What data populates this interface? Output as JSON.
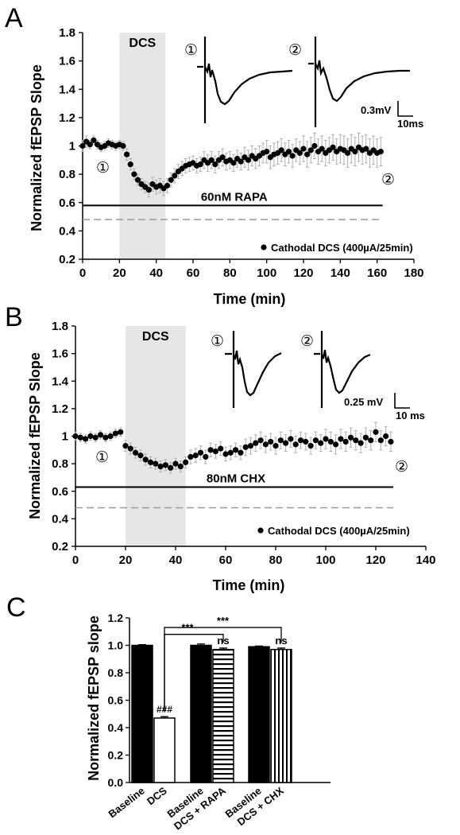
{
  "chart_data": [
    {
      "panel": "A",
      "type": "scatter",
      "ylabel": "Normalized fEPSP Slope",
      "xlabel": "Time (min)",
      "xlim": [
        0,
        180
      ],
      "ylim": [
        0.2,
        1.8
      ],
      "xticks": [
        "0",
        "20",
        "40",
        "60",
        "80",
        "100",
        "120",
        "140",
        "160",
        "180"
      ],
      "yticks": [
        "0.2",
        "0.4",
        "0.6",
        "0.8",
        "1",
        "1.2",
        "1.4",
        "1.6",
        "1.8"
      ],
      "shaded_label": "DCS",
      "shaded_range": [
        20,
        45
      ],
      "drug_line_label": "60nM RAPA",
      "drug_line_y": 0.58,
      "drug_line_range": [
        0,
        163
      ],
      "dashed_line_y": 0.48,
      "legend": "Cathodal DCS (400µA/25min)",
      "marker_1": "①",
      "marker_2": "②",
      "scale_bar_v": "0.3mV",
      "scale_bar_h": "10ms",
      "x": [
        0,
        2,
        4,
        6,
        8,
        10,
        12,
        14,
        16,
        18,
        20,
        22,
        24,
        26,
        28,
        30,
        32,
        34,
        36,
        38,
        40,
        42,
        44,
        46,
        48,
        50,
        52,
        54,
        56,
        58,
        60,
        62,
        64,
        66,
        68,
        70,
        72,
        74,
        76,
        78,
        80,
        82,
        84,
        86,
        88,
        90,
        92,
        94,
        96,
        98,
        100,
        102,
        104,
        106,
        108,
        110,
        112,
        114,
        116,
        118,
        120,
        122,
        124,
        126,
        128,
        130,
        132,
        134,
        136,
        138,
        140,
        142,
        144,
        146,
        148,
        150,
        152,
        154,
        156,
        158,
        160,
        162
      ],
      "y": [
        1.0,
        1.03,
        1.01,
        1.04,
        1.01,
        0.99,
        1.0,
        1.02,
        1.01,
        1.0,
        1.01,
        1.0,
        0.94,
        0.87,
        0.8,
        0.76,
        0.73,
        0.71,
        0.69,
        0.73,
        0.71,
        0.72,
        0.7,
        0.72,
        0.76,
        0.79,
        0.82,
        0.84,
        0.86,
        0.87,
        0.88,
        0.86,
        0.87,
        0.9,
        0.88,
        0.9,
        0.87,
        0.9,
        0.92,
        0.89,
        0.9,
        0.88,
        0.91,
        0.89,
        0.92,
        0.9,
        0.93,
        0.91,
        0.93,
        0.95,
        0.96,
        0.92,
        0.94,
        0.95,
        0.97,
        0.94,
        0.96,
        0.93,
        0.97,
        0.95,
        0.98,
        0.94,
        0.97,
        1.0,
        0.96,
        0.98,
        0.95,
        0.97,
        0.99,
        0.96,
        0.98,
        0.97,
        0.95,
        0.98,
        0.96,
        0.99,
        0.97,
        0.98,
        0.95,
        0.97,
        0.95,
        0.96
      ],
      "err": [
        0.04,
        0.04,
        0.03,
        0.03,
        0.03,
        0.03,
        0.03,
        0.03,
        0.03,
        0.03,
        0.03,
        0.03,
        0.04,
        0.04,
        0.04,
        0.04,
        0.04,
        0.04,
        0.05,
        0.05,
        0.05,
        0.05,
        0.05,
        0.05,
        0.05,
        0.05,
        0.05,
        0.05,
        0.05,
        0.05,
        0.05,
        0.05,
        0.05,
        0.06,
        0.06,
        0.06,
        0.06,
        0.06,
        0.06,
        0.06,
        0.06,
        0.06,
        0.06,
        0.06,
        0.07,
        0.07,
        0.07,
        0.07,
        0.07,
        0.07,
        0.08,
        0.08,
        0.08,
        0.08,
        0.08,
        0.08,
        0.08,
        0.08,
        0.08,
        0.08,
        0.09,
        0.09,
        0.09,
        0.09,
        0.09,
        0.09,
        0.09,
        0.09,
        0.09,
        0.09,
        0.1,
        0.1,
        0.1,
        0.1,
        0.1,
        0.1,
        0.1,
        0.1,
        0.1,
        0.1,
        0.1,
        0.1
      ]
    },
    {
      "panel": "B",
      "type": "scatter",
      "ylabel": "Normalized fEPSP Slope",
      "xlabel": "Time (min)",
      "xlim": [
        0,
        140
      ],
      "ylim": [
        0.2,
        1.8
      ],
      "xticks": [
        "0",
        "20",
        "40",
        "60",
        "80",
        "100",
        "120",
        "140"
      ],
      "yticks": [
        "0.2",
        "0.4",
        "0.6",
        "0.8",
        "1",
        "1.2",
        "1.4",
        "1.6",
        "1.8"
      ],
      "shaded_label": "DCS",
      "shaded_range": [
        20,
        44
      ],
      "drug_line_label": "80nM CHX",
      "drug_line_y": 0.63,
      "drug_line_range": [
        0,
        127
      ],
      "dashed_line_y": 0.48,
      "legend": "Cathodal DCS (400µA/25min)",
      "marker_1": "①",
      "marker_2": "②",
      "scale_bar_v": "0.25 mV",
      "scale_bar_h": "10 ms",
      "x": [
        0,
        2,
        4,
        6,
        8,
        10,
        12,
        14,
        16,
        18,
        20,
        22,
        24,
        26,
        28,
        30,
        32,
        34,
        36,
        38,
        40,
        42,
        44,
        46,
        48,
        50,
        52,
        54,
        56,
        58,
        60,
        62,
        64,
        66,
        68,
        70,
        72,
        74,
        76,
        78,
        80,
        82,
        84,
        86,
        88,
        90,
        92,
        94,
        96,
        98,
        100,
        102,
        104,
        106,
        108,
        110,
        112,
        114,
        116,
        118,
        120,
        122,
        124,
        126
      ],
      "y": [
        1.0,
        0.99,
        0.98,
        1.0,
        0.99,
        1.01,
        0.99,
        1.0,
        1.02,
        1.03,
        0.93,
        0.91,
        0.88,
        0.86,
        0.83,
        0.81,
        0.8,
        0.78,
        0.79,
        0.77,
        0.8,
        0.78,
        0.81,
        0.85,
        0.86,
        0.88,
        0.85,
        0.9,
        0.89,
        0.91,
        0.87,
        0.88,
        0.9,
        0.88,
        0.92,
        0.93,
        0.95,
        0.97,
        0.94,
        0.96,
        0.93,
        0.97,
        0.95,
        0.98,
        0.94,
        0.97,
        0.96,
        0.93,
        0.97,
        0.95,
        0.98,
        0.96,
        0.94,
        0.98,
        0.96,
        0.99,
        0.97,
        0.95,
        0.99,
        0.97,
        1.03,
        0.97,
        1.0,
        0.96
      ],
      "err": [
        0.03,
        0.03,
        0.03,
        0.03,
        0.03,
        0.03,
        0.03,
        0.03,
        0.03,
        0.03,
        0.04,
        0.04,
        0.04,
        0.04,
        0.04,
        0.04,
        0.04,
        0.04,
        0.04,
        0.04,
        0.04,
        0.04,
        0.04,
        0.05,
        0.05,
        0.05,
        0.05,
        0.05,
        0.05,
        0.05,
        0.05,
        0.05,
        0.05,
        0.05,
        0.06,
        0.06,
        0.06,
        0.06,
        0.06,
        0.06,
        0.06,
        0.06,
        0.06,
        0.06,
        0.06,
        0.06,
        0.06,
        0.06,
        0.06,
        0.06,
        0.07,
        0.07,
        0.07,
        0.07,
        0.07,
        0.07,
        0.07,
        0.07,
        0.07,
        0.07,
        0.07,
        0.07,
        0.07,
        0.07
      ]
    },
    {
      "panel": "C",
      "type": "bar",
      "ylabel": "Normalized fEPSP slope",
      "ylim": [
        0,
        1.2
      ],
      "yticks": [
        "0.0",
        "0.2",
        "0.4",
        "0.6",
        "0.8",
        "1.0",
        "1.2"
      ],
      "bars": [
        {
          "label": "Baseline",
          "value": 1.0,
          "err": 0.005,
          "pattern": "solid"
        },
        {
          "label": "DCS",
          "value": 0.47,
          "err": 0.01,
          "pattern": "empty",
          "annotation": "###"
        },
        {
          "label": "Baseline",
          "value": 1.0,
          "err": 0.01,
          "pattern": "solid"
        },
        {
          "label": "DCS + RAPA",
          "value": 0.97,
          "err": 0.01,
          "pattern": "horizontal",
          "annotation": "ns"
        },
        {
          "label": "Baseline",
          "value": 0.99,
          "err": 0.005,
          "pattern": "solid"
        },
        {
          "label": "DCS + CHX",
          "value": 0.97,
          "err": 0.01,
          "pattern": "vertical",
          "annotation": "ns"
        }
      ],
      "comparisons": [
        {
          "from": 1,
          "to": 3,
          "label": "***"
        },
        {
          "from": 1,
          "to": 5,
          "label": "***"
        }
      ]
    }
  ],
  "panels": {
    "a": "A",
    "b": "B",
    "c": "C"
  },
  "colors": {
    "marker": "#000000",
    "shade": "#e6e6e6",
    "dashed": "#9a9a9a",
    "errorbar": "#b0b0b0"
  }
}
